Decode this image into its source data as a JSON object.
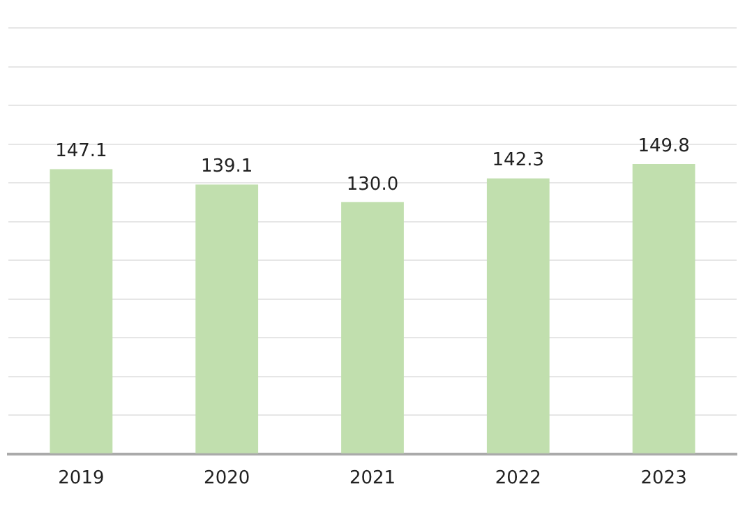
{
  "chart_data": {
    "type": "bar",
    "categories": [
      "2019",
      "2020",
      "2021",
      "2022",
      "2023"
    ],
    "values": [
      147.1,
      139.1,
      130.0,
      142.3,
      149.8
    ],
    "color": "#c1dfae",
    "value_labels": [
      "147.1",
      "139.1",
      "130.0",
      "142.3",
      "149.8"
    ],
    "ylim": [
      0,
      220
    ],
    "yticks": [
      {
        "value": 0,
        "label": null
      },
      {
        "value": 20,
        "label": null
      },
      {
        "value": 40,
        "label": null
      },
      {
        "value": 60,
        "label": null
      },
      {
        "value": 80,
        "label": null
      },
      {
        "value": 100,
        "label": null
      },
      {
        "value": 120,
        "label": null
      },
      {
        "value": 140,
        "label": null
      },
      {
        "value": 160,
        "label": null
      },
      {
        "value": 180,
        "label": null
      },
      {
        "value": 200,
        "label": null
      },
      {
        "value": 220,
        "label": null
      }
    ],
    "grid": "y",
    "tick_labels": "x"
  }
}
